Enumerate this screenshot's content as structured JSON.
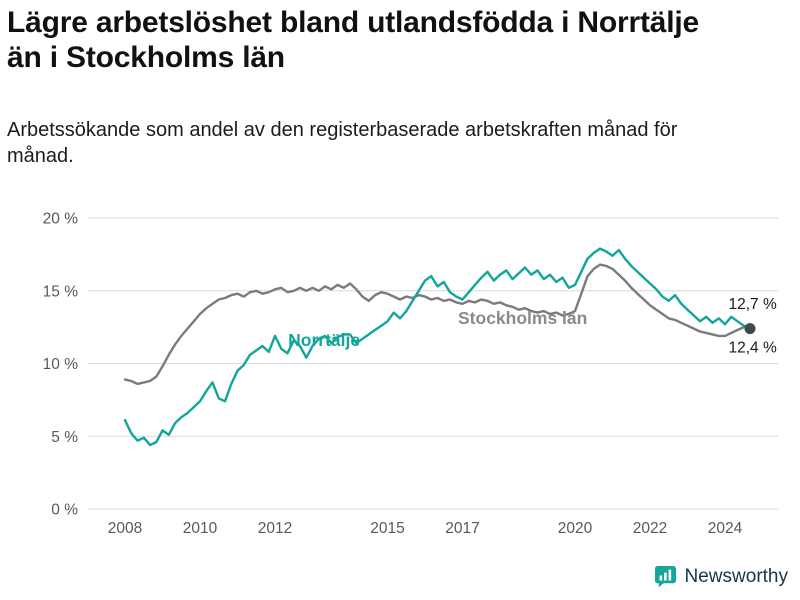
{
  "header": {
    "title": "Lägre arbetslöshet bland utlandsfödda i Norrtälje än i Stockholms län",
    "subtitle": "Arbetssökande som andel av den registerbaserade arbetskraften månad för månad."
  },
  "brand": {
    "name": "Newsworthy",
    "icon": "newsworthy-chart-bubble-icon",
    "icon_color": "#17a69b",
    "text_color": "#14374e"
  },
  "chart_data": {
    "type": "line",
    "title": "Lägre arbetslöshet bland utlandsfödda i Norrtälje än i Stockholms län",
    "subtitle": "Arbetssökande som andel av den registerbaserade arbetskraften månad för månad.",
    "x_unit": "year (monthly observations)",
    "x_start": 2008.0,
    "x_step": 0.1666667,
    "xlim": [
      2007.0,
      2025.4
    ],
    "ylim": [
      0,
      20
    ],
    "grid": true,
    "yticks": [
      {
        "value": 0,
        "label": "0 %"
      },
      {
        "value": 5,
        "label": "5 %"
      },
      {
        "value": 10,
        "label": "10 %"
      },
      {
        "value": 15,
        "label": "15 %"
      },
      {
        "value": 20,
        "label": "20 %"
      }
    ],
    "xticks": [
      {
        "value": 2008,
        "label": "2008"
      },
      {
        "value": 2010,
        "label": "2010"
      },
      {
        "value": 2012,
        "label": "2012"
      },
      {
        "value": 2015,
        "label": "2015"
      },
      {
        "value": 2017,
        "label": "2017"
      },
      {
        "value": 2020,
        "label": "2020"
      },
      {
        "value": 2022,
        "label": "2022"
      },
      {
        "value": 2024,
        "label": "2024"
      }
    ],
    "series": [
      {
        "name": "Stockholms län",
        "color": "#7b7b7b",
        "latest_label": "12,7 %",
        "values": [
          8.9,
          8.8,
          8.6,
          8.7,
          8.8,
          9.1,
          9.8,
          10.6,
          11.3,
          11.9,
          12.4,
          12.9,
          13.4,
          13.8,
          14.1,
          14.4,
          14.5,
          14.7,
          14.8,
          14.6,
          14.9,
          15.0,
          14.8,
          14.9,
          15.1,
          15.2,
          14.9,
          15.0,
          15.2,
          15.0,
          15.2,
          15.0,
          15.3,
          15.1,
          15.4,
          15.2,
          15.5,
          15.1,
          14.6,
          14.3,
          14.7,
          14.9,
          14.8,
          14.6,
          14.4,
          14.6,
          14.5,
          14.7,
          14.6,
          14.4,
          14.5,
          14.3,
          14.4,
          14.2,
          14.1,
          14.3,
          14.2,
          14.4,
          14.3,
          14.1,
          14.2,
          14.0,
          13.9,
          13.7,
          13.8,
          13.6,
          13.5,
          13.6,
          13.4,
          13.5,
          13.3,
          13.4,
          13.6,
          14.8,
          16.0,
          16.5,
          16.8,
          16.7,
          16.5,
          16.1,
          15.7,
          15.2,
          14.8,
          14.4,
          14.0,
          13.7,
          13.4,
          13.1,
          13.0,
          12.8,
          12.6,
          12.4,
          12.2,
          12.1,
          12.0,
          11.9,
          11.9,
          12.1,
          12.3,
          12.5,
          12.7
        ]
      },
      {
        "name": "Norrtälje",
        "color": "#12a59c",
        "latest_label": "12,4 %",
        "values": [
          6.1,
          5.2,
          4.7,
          4.9,
          4.4,
          4.6,
          5.4,
          5.1,
          5.9,
          6.3,
          6.6,
          7.0,
          7.4,
          8.1,
          8.7,
          7.6,
          7.4,
          8.6,
          9.5,
          9.9,
          10.6,
          10.9,
          11.2,
          10.8,
          11.9,
          11.0,
          10.7,
          11.6,
          11.2,
          10.4,
          11.2,
          11.7,
          11.9,
          11.4,
          11.8,
          12.0,
          12.0,
          11.4,
          11.7,
          12.0,
          12.3,
          12.6,
          12.9,
          13.5,
          13.1,
          13.6,
          14.3,
          15.0,
          15.7,
          16.0,
          15.3,
          15.6,
          14.9,
          14.6,
          14.4,
          14.9,
          15.4,
          15.9,
          16.3,
          15.7,
          16.1,
          16.4,
          15.8,
          16.2,
          16.6,
          16.1,
          16.4,
          15.8,
          16.1,
          15.6,
          15.9,
          15.2,
          15.4,
          16.3,
          17.2,
          17.6,
          17.9,
          17.7,
          17.4,
          17.8,
          17.2,
          16.7,
          16.3,
          15.9,
          15.5,
          15.1,
          14.6,
          14.3,
          14.7,
          14.1,
          13.7,
          13.3,
          12.9,
          13.2,
          12.8,
          13.1,
          12.7,
          13.2,
          12.9,
          12.6,
          12.4
        ]
      }
    ],
    "end_dot": {
      "series": "Norrtälje",
      "value": 12.4,
      "color": "#3c4a49"
    },
    "annotations": [
      {
        "id": "norrtalje-series-label",
        "text": "Norrtälje",
        "color": "#12a59c",
        "bold": true,
        "size": 17.5,
        "anchor": "start",
        "year": 2012.35,
        "value": 11.2
      },
      {
        "id": "stockholm-series-label",
        "text": "Stockholms län",
        "color": "#8a8a8a",
        "bold": true,
        "size": 17.5,
        "anchor": "start",
        "year": 2016.88,
        "value": 12.7
      },
      {
        "id": "latest-value-stockholm",
        "text": "12,7 %",
        "color": "#1a1a1a",
        "bold": false,
        "size": 15.5,
        "anchor": "end",
        "year": 2025.38,
        "value": 13.75
      },
      {
        "id": "latest-value-norrtalje",
        "text": "12,4 %",
        "color": "#1a1a1a",
        "bold": false,
        "size": 15.5,
        "anchor": "end",
        "year": 2025.38,
        "value": 10.75
      }
    ],
    "legend_position": "inline-labels"
  }
}
